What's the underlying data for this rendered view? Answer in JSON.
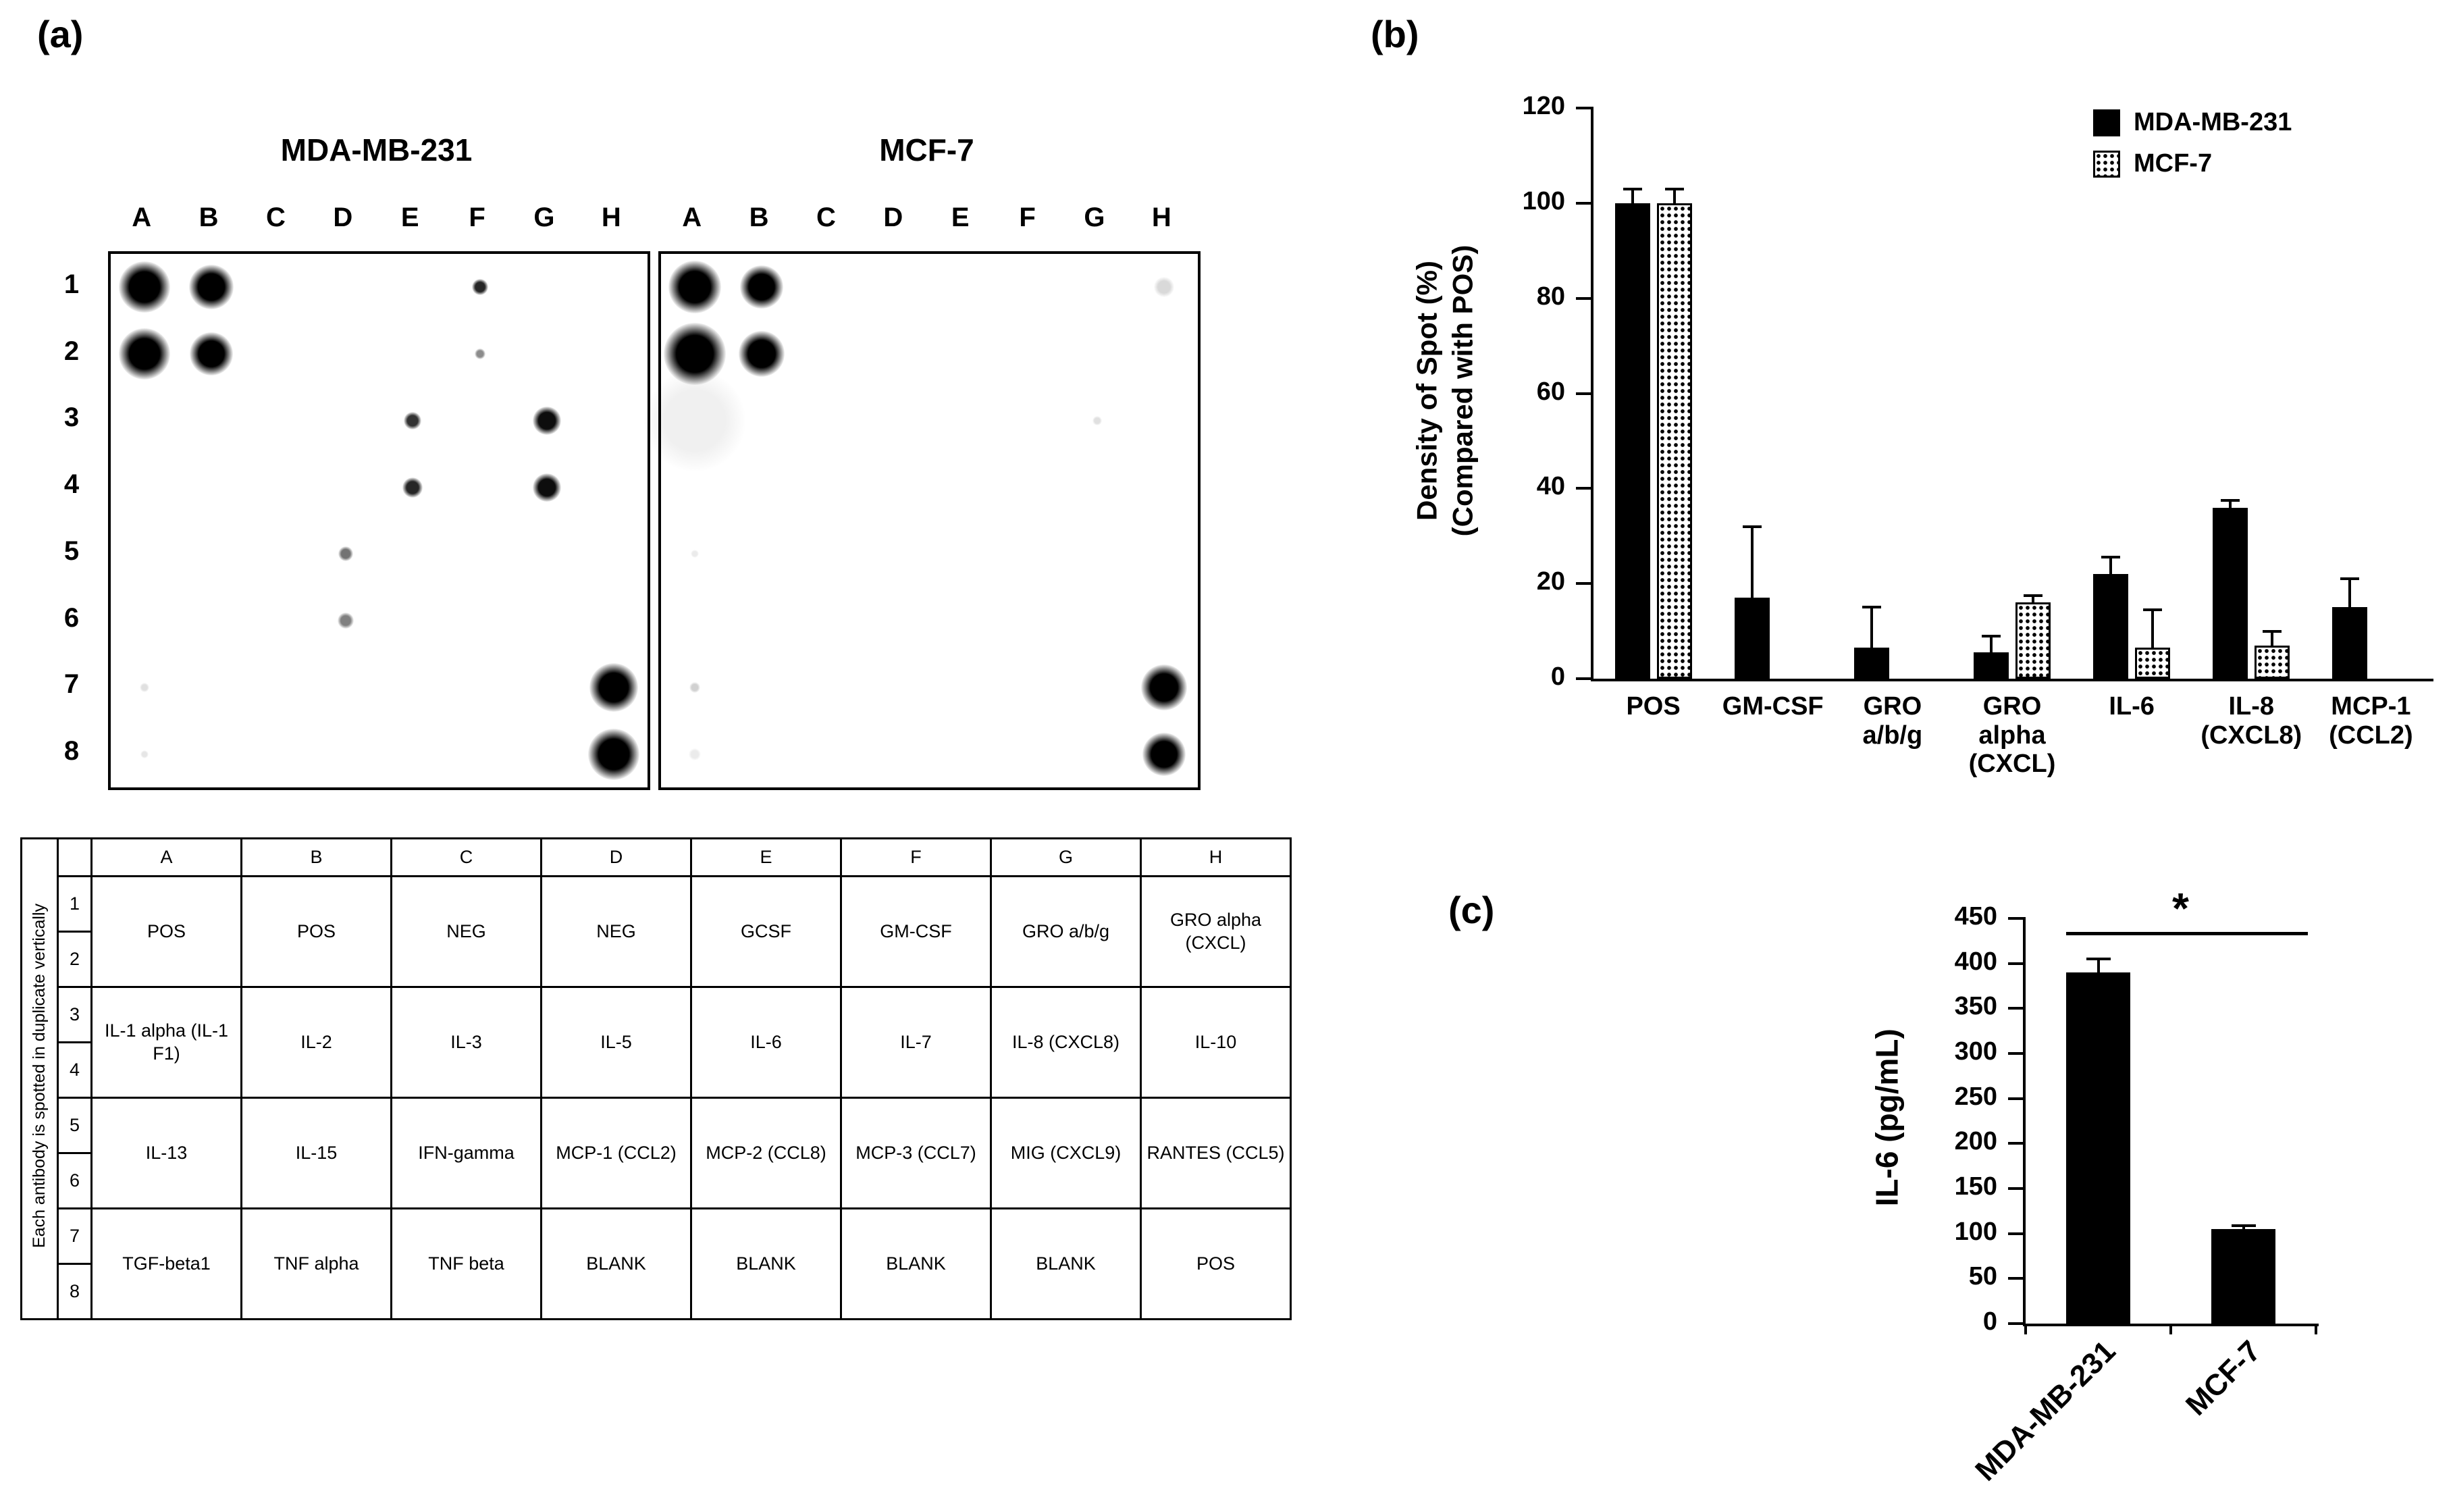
{
  "labels": {
    "a": "(a)",
    "b": "(b)",
    "c": "(c)"
  },
  "panel_a": {
    "blot_cols": [
      "A",
      "B",
      "C",
      "D",
      "E",
      "F",
      "G",
      "H"
    ],
    "blot_rows": [
      "1",
      "2",
      "3",
      "4",
      "5",
      "6",
      "7",
      "8"
    ],
    "blots": [
      {
        "title": "MDA-MB-231",
        "spots": [
          {
            "col": "A",
            "row": 1,
            "size": 76,
            "opacity": 1
          },
          {
            "col": "B",
            "row": 1,
            "size": 66,
            "opacity": 1
          },
          {
            "col": "F",
            "row": 1,
            "size": 24,
            "opacity": 0.85
          },
          {
            "col": "A",
            "row": 2,
            "size": 76,
            "opacity": 1
          },
          {
            "col": "B",
            "row": 2,
            "size": 64,
            "opacity": 1
          },
          {
            "col": "F",
            "row": 2,
            "size": 16,
            "opacity": 0.45
          },
          {
            "col": "E",
            "row": 3,
            "size": 26,
            "opacity": 0.8
          },
          {
            "col": "G",
            "row": 3,
            "size": 42,
            "opacity": 0.95
          },
          {
            "col": "E",
            "row": 4,
            "size": 30,
            "opacity": 0.85
          },
          {
            "col": "G",
            "row": 4,
            "size": 42,
            "opacity": 0.95
          },
          {
            "col": "D",
            "row": 5,
            "size": 22,
            "opacity": 0.55
          },
          {
            "col": "D",
            "row": 6,
            "size": 24,
            "opacity": 0.5
          },
          {
            "col": "A",
            "row": 7,
            "size": 14,
            "opacity": 0.12
          },
          {
            "col": "H",
            "row": 7,
            "size": 72,
            "opacity": 1
          },
          {
            "col": "A",
            "row": 8,
            "size": 12,
            "opacity": 0.1
          },
          {
            "col": "H",
            "row": 8,
            "size": 76,
            "opacity": 1
          }
        ]
      },
      {
        "title": "MCF-7",
        "spots": [
          {
            "col": "A",
            "row": 1,
            "size": 78,
            "opacity": 1
          },
          {
            "col": "B",
            "row": 1,
            "size": 64,
            "opacity": 1
          },
          {
            "col": "H",
            "row": 1,
            "size": 30,
            "opacity": 0.15
          },
          {
            "col": "A",
            "row": 2,
            "size": 92,
            "opacity": 1
          },
          {
            "col": "B",
            "row": 2,
            "size": 68,
            "opacity": 1
          },
          {
            "col": "A",
            "row": 3,
            "size": 150,
            "opacity": 0.06
          },
          {
            "col": "G",
            "row": 3,
            "size": 14,
            "opacity": 0.12
          },
          {
            "col": "A",
            "row": 5,
            "size": 12,
            "opacity": 0.08
          },
          {
            "col": "A",
            "row": 7,
            "size": 16,
            "opacity": 0.18
          },
          {
            "col": "H",
            "row": 7,
            "size": 68,
            "opacity": 1
          },
          {
            "col": "A",
            "row": 8,
            "size": 18,
            "opacity": 0.08
          },
          {
            "col": "H",
            "row": 8,
            "size": 64,
            "opacity": 1
          }
        ]
      }
    ],
    "table": {
      "side_label": "Each antibody is spotted in duplicate vertically",
      "col_headers": [
        "A",
        "B",
        "C",
        "D",
        "E",
        "F",
        "G",
        "H"
      ],
      "row_numbers": [
        "1",
        "2",
        "3",
        "4",
        "5",
        "6",
        "7",
        "8"
      ],
      "groups": [
        [
          "POS",
          "POS",
          "NEG",
          "NEG",
          "GCSF",
          "GM-CSF",
          "GRO a/b/g",
          "GRO alpha (CXCL)"
        ],
        [
          "IL-1 alpha (IL-1 F1)",
          "IL-2",
          "IL-3",
          "IL-5",
          "IL-6",
          "IL-7",
          "IL-8 (CXCL8)",
          "IL-10"
        ],
        [
          "IL-13",
          "IL-15",
          "IFN-gamma",
          "MCP-1 (CCL2)",
          "MCP-2 (CCL8)",
          "MCP-3 (CCL7)",
          "MIG (CXCL9)",
          "RANTES (CCL5)"
        ],
        [
          "TGF-beta1",
          "TNF alpha",
          "TNF beta",
          "BLANK",
          "BLANK",
          "BLANK",
          "BLANK",
          "POS"
        ]
      ]
    }
  },
  "chart_data": [
    {
      "id": "chart-b",
      "type": "bar",
      "title": "",
      "ylabel": "Density of Spot (%)\n(Compared with POS)",
      "ylim": [
        0,
        120
      ],
      "ytick": 20,
      "grid": false,
      "legend_position": "top-right",
      "categories": [
        "POS",
        "GM-CSF",
        "GRO\na/b/g",
        "GRO\nalpha\n(CXCL)",
        "IL-6",
        "IL-8\n(CXCL8)",
        "MCP-1\n(CCL2)"
      ],
      "series": [
        {
          "name": "MDA-MB-231",
          "fill": "solid",
          "values": [
            100,
            17,
            6.5,
            5.5,
            22,
            36,
            15
          ],
          "errors": [
            3,
            15,
            8.5,
            3.5,
            3.5,
            1.5,
            6
          ]
        },
        {
          "name": "MCF-7",
          "fill": "dotted",
          "values": [
            100,
            0,
            0,
            16,
            6.5,
            7,
            0
          ],
          "errors": [
            3,
            0,
            0,
            1.5,
            8,
            3,
            0
          ]
        }
      ]
    },
    {
      "id": "chart-c",
      "type": "bar",
      "title": "",
      "ylabel": "IL-6 (pg/mL)",
      "ylim": [
        0,
        450
      ],
      "ytick": 50,
      "grid": false,
      "categories": [
        "MDA-MB-231",
        "MCF-7"
      ],
      "series": [
        {
          "name": "IL-6",
          "fill": "solid",
          "values": [
            390,
            105
          ],
          "errors": [
            15,
            4
          ]
        }
      ],
      "significance": {
        "label": "*",
        "value": 435,
        "between": [
          0,
          1
        ]
      }
    }
  ]
}
